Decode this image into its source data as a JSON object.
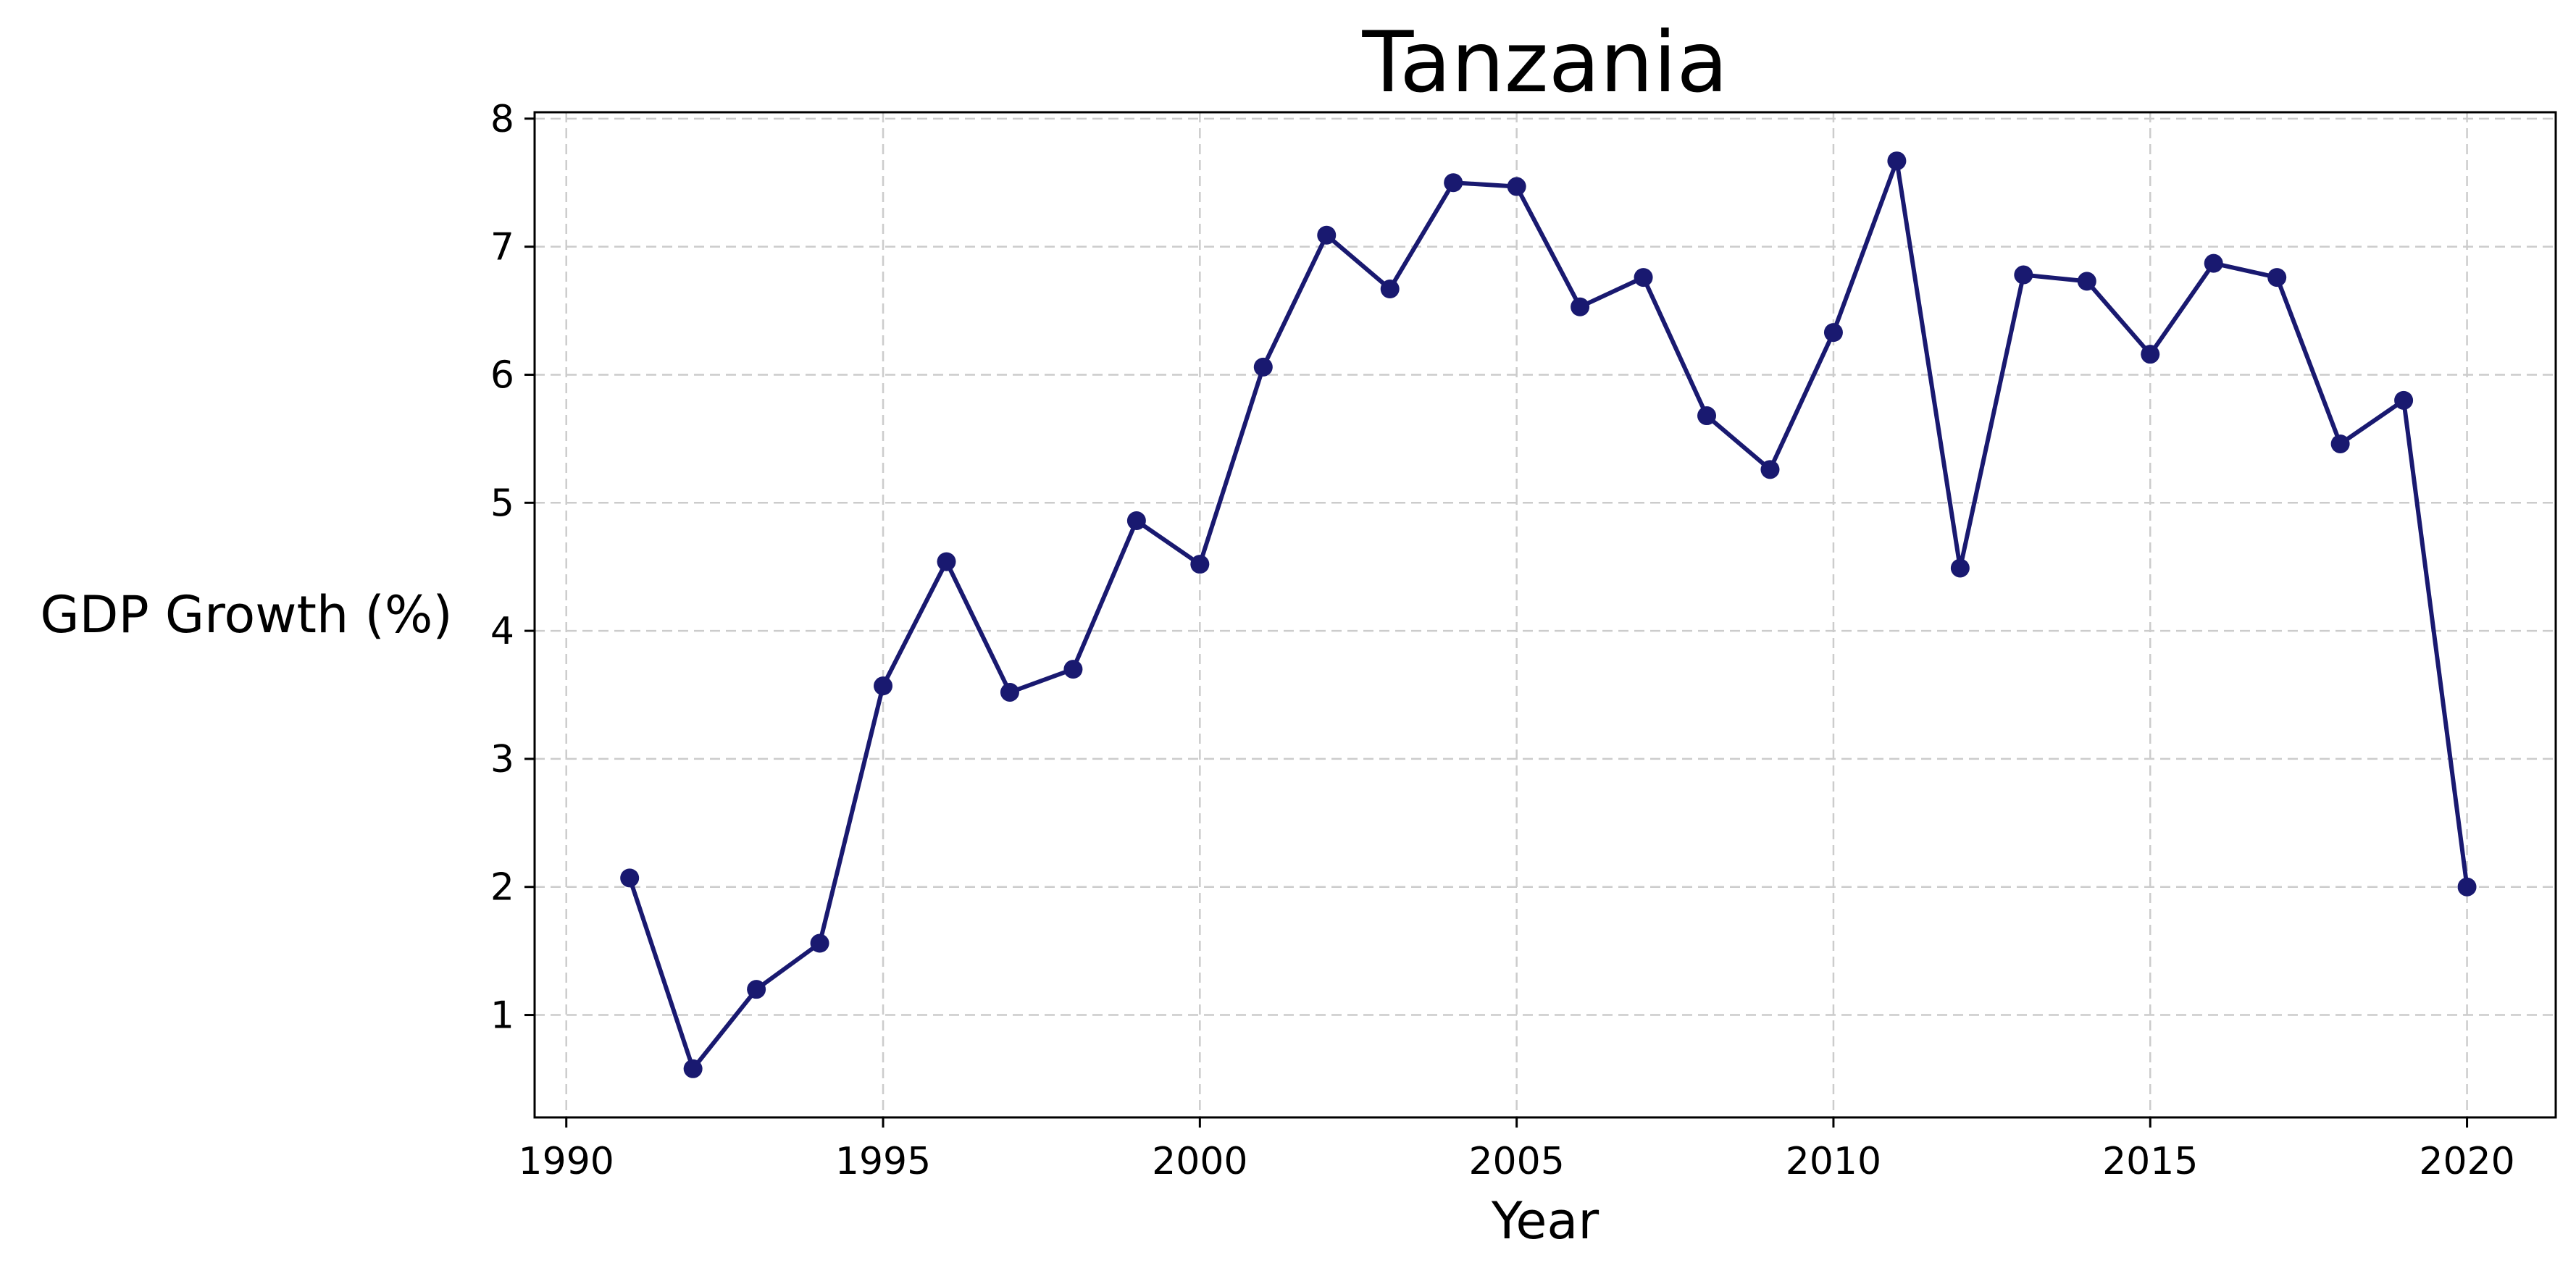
{
  "chart_data": {
    "type": "line",
    "title": "Tanzania",
    "xlabel": "Year",
    "ylabel": "GDP Growth (%)",
    "xlim": [
      1989.5,
      2021.4
    ],
    "ylim": [
      0.2,
      8.05
    ],
    "xticks": [
      1990,
      1995,
      2000,
      2005,
      2010,
      2015,
      2020
    ],
    "yticks": [
      1,
      2,
      3,
      4,
      5,
      6,
      7,
      8
    ],
    "grid": true,
    "color": "#191970",
    "series": [
      {
        "x": [
          1991,
          1992,
          1993,
          1994,
          1995,
          1996,
          1997,
          1998,
          1999,
          2000,
          2001,
          2002,
          2003,
          2004,
          2005,
          2006,
          2007,
          2008,
          2009,
          2010,
          2011,
          2012,
          2013,
          2014,
          2015,
          2016,
          2017,
          2018,
          2019,
          2020
        ],
        "values": [
          2.07,
          0.58,
          1.2,
          1.56,
          3.57,
          4.54,
          3.52,
          3.7,
          4.86,
          4.52,
          6.06,
          7.09,
          6.67,
          7.5,
          7.47,
          6.53,
          6.76,
          5.68,
          5.26,
          6.33,
          7.67,
          4.49,
          6.78,
          6.73,
          6.16,
          6.87,
          6.76,
          5.46,
          5.8,
          2.0
        ]
      }
    ]
  }
}
